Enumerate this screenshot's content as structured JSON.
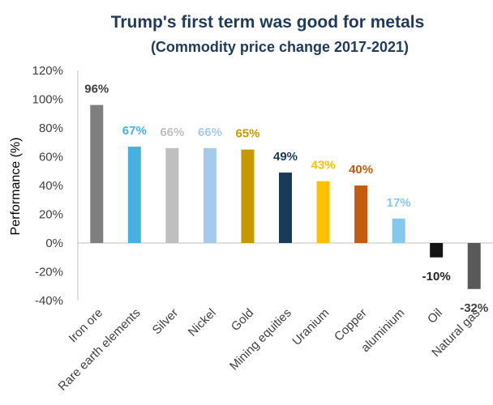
{
  "chart_data": {
    "type": "bar",
    "title": "Trump's first term was good for metals",
    "subtitle": "(Commodity price change 2017-2021)",
    "ylabel": "Performance (%)",
    "xlabel": "",
    "ylim": [
      -40,
      120
    ],
    "yticks": [
      -40,
      -20,
      0,
      20,
      40,
      60,
      80,
      100,
      120
    ],
    "ytick_labels": [
      "-40%",
      "-20%",
      "0%",
      "20%",
      "40%",
      "60%",
      "80%",
      "100%",
      "120%"
    ],
    "grid": false,
    "categories": [
      "Iron ore",
      "Rare earth elements",
      "Silver",
      "Nickel",
      "Gold",
      "Mining equities",
      "Uranium",
      "Copper",
      "aluminium",
      "Oil",
      "Natural gas"
    ],
    "values": [
      96,
      67,
      66,
      66,
      65,
      49,
      43,
      40,
      17,
      -10,
      -32
    ],
    "data_labels": [
      "96%",
      "67%",
      "66%",
      "66%",
      "65%",
      "49%",
      "43%",
      "40%",
      "17%",
      "-10%",
      "-32%"
    ],
    "bar_colors": [
      "#7f7f7f",
      "#46b1e1",
      "#bfbfbf",
      "#a6caec",
      "#c89800",
      "#1a3a5c",
      "#ffc000",
      "#c55a11",
      "#84c9ec",
      "#141414",
      "#595959"
    ],
    "label_colors": [
      "#404040",
      "#46b1e1",
      "#bfbfbf",
      "#a6caec",
      "#c89800",
      "#1a3a5c",
      "#ffc000",
      "#c55a11",
      "#84c9ec",
      "#262626",
      "#404040"
    ]
  }
}
